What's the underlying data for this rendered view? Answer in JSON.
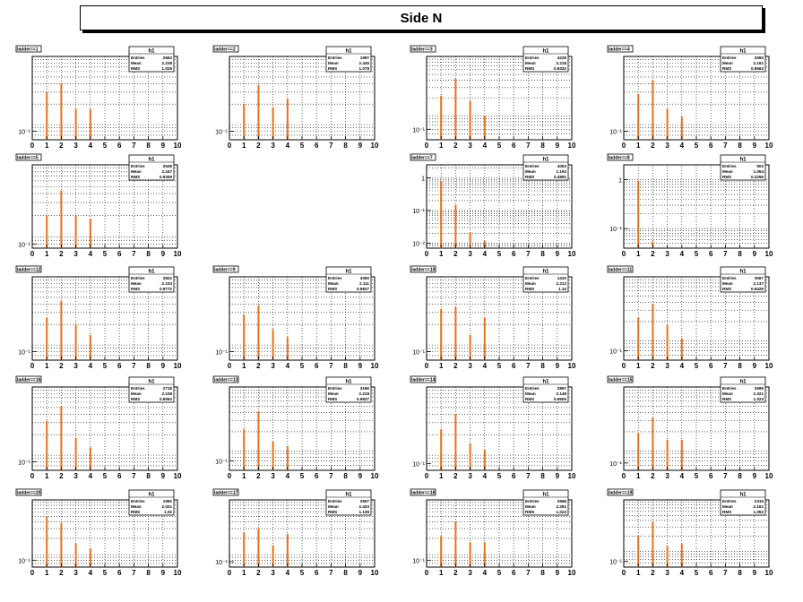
{
  "title": "Side N",
  "chart_data": {
    "type": "bar",
    "y_scale": "log",
    "grid": true,
    "x_ticks": [
      "0",
      "1",
      "2",
      "3",
      "4",
      "5",
      "6",
      "7",
      "8",
      "9",
      "10"
    ],
    "xlim": [
      0,
      10
    ],
    "stats_header": "h1",
    "stat_labels": [
      "Entries",
      "Mean",
      "RMS"
    ],
    "bar_color": "#e8711c",
    "panels": [
      {
        "label": "ladder==1",
        "entries": "2663",
        "mean": "2.238",
        "rms": "1.026",
        "x": [
          1,
          2,
          3,
          4
        ],
        "y": [
          0.3,
          0.4,
          0.17,
          0.17
        ],
        "ylim": [
          0.06,
          1.0
        ],
        "ytick_labels": [
          {
            "v": 0.08,
            "t": "10⁻¹"
          }
        ]
      },
      {
        "label": "ladder==2",
        "entries": "1987",
        "mean": "2.445",
        "rms": "1.078",
        "x": [
          1,
          2,
          3,
          4
        ],
        "y": [
          0.2,
          0.38,
          0.18,
          0.24
        ],
        "ylim": [
          0.06,
          1.0
        ],
        "ytick_labels": [
          {
            "v": 0.08,
            "t": "10⁻¹"
          }
        ]
      },
      {
        "label": "ladder==3",
        "entries": "4228",
        "mean": "2.218",
        "rms": "0.9332",
        "x": [
          1,
          2,
          3,
          4
        ],
        "y": [
          0.22,
          0.42,
          0.18,
          0.1
        ],
        "ylim": [
          0.04,
          1.0
        ],
        "ytick_labels": [
          {
            "v": 0.06,
            "t": "10⁻¹"
          }
        ]
      },
      {
        "label": "ladder==4",
        "entries": "2683",
        "mean": "2.161",
        "rms": "0.9563",
        "x": [
          1,
          2,
          3,
          4
        ],
        "y": [
          0.28,
          0.45,
          0.17,
          0.13
        ],
        "ylim": [
          0.06,
          1.0
        ],
        "ytick_labels": [
          {
            "v": 0.08,
            "t": "10⁻¹"
          }
        ]
      },
      {
        "label": "ladder==5",
        "entries": "2628",
        "mean": "2.247",
        "rms": "0.9309",
        "x": [
          1,
          2,
          3,
          4
        ],
        "y": [
          0.2,
          0.44,
          0.2,
          0.18
        ],
        "ylim": [
          0.07,
          1.0
        ],
        "ytick_labels": [
          {
            "v": 0.08,
            "t": "10⁻¹"
          }
        ]
      },
      {
        "label": "ladder==7",
        "entries": "4063",
        "mean": "1.193",
        "rms": "0.4891",
        "x": [
          1,
          2,
          3,
          4
        ],
        "y": [
          0.8,
          0.15,
          0.022,
          0.012
        ],
        "ylim": [
          0.007,
          2.5
        ],
        "ytick_labels": [
          {
            "v": 1,
            "t": "1"
          },
          {
            "v": 0.1,
            "t": "10⁻¹"
          },
          {
            "v": 0.01,
            "t": "10⁻²"
          }
        ]
      },
      {
        "label": "ladder==8",
        "entries": "502",
        "mean": "1.054",
        "rms": "0.2256",
        "x": [
          1,
          2
        ],
        "y": [
          0.95,
          0.055
        ],
        "ylim": [
          0.04,
          2.0
        ],
        "ytick_labels": [
          {
            "v": 1,
            "t": "1"
          },
          {
            "v": 0.1,
            "t": "10⁻¹"
          }
        ]
      },
      {
        "label": "ladder==9",
        "entries": "3060",
        "mean": "2.111",
        "rms": "0.9827",
        "x": [
          1,
          2,
          3,
          4
        ],
        "y": [
          0.28,
          0.38,
          0.17,
          0.13
        ],
        "ylim": [
          0.06,
          1.0
        ],
        "ytick_labels": [
          {
            "v": 0.08,
            "t": "10⁻¹"
          }
        ]
      },
      {
        "label": "ladder==10",
        "entries": "1410",
        "mean": "2.212",
        "rms": "1.14",
        "x": [
          1,
          2,
          3,
          4
        ],
        "y": [
          0.34,
          0.36,
          0.14,
          0.25
        ],
        "ylim": [
          0.06,
          1.0
        ],
        "ytick_labels": [
          {
            "v": 0.08,
            "t": "10⁻¹"
          }
        ]
      },
      {
        "label": "ladder==11",
        "entries": "3067",
        "mean": "2.137",
        "rms": "0.9429",
        "x": [
          1,
          2,
          3,
          4
        ],
        "y": [
          0.23,
          0.38,
          0.18,
          0.11
        ],
        "ylim": [
          0.05,
          1.0
        ],
        "ytick_labels": [
          {
            "v": 0.07,
            "t": "10⁻¹"
          }
        ]
      },
      {
        "label": "ladder==12",
        "entries": "2822",
        "mean": "2.233",
        "rms": "0.9772",
        "x": [
          1,
          2,
          3,
          4
        ],
        "y": [
          0.25,
          0.45,
          0.2,
          0.14
        ],
        "ylim": [
          0.06,
          1.0
        ],
        "ytick_labels": [
          {
            "v": 0.08,
            "t": "10⁻¹"
          }
        ]
      },
      {
        "label": "ladder==13",
        "entries": "3166",
        "mean": "2.218",
        "rms": "0.9827",
        "x": [
          1,
          2,
          3,
          4
        ],
        "y": [
          0.22,
          0.42,
          0.14,
          0.12
        ],
        "ylim": [
          0.05,
          1.0
        ],
        "ytick_labels": [
          {
            "v": 0.07,
            "t": "10⁻¹"
          }
        ]
      },
      {
        "label": "ladder==14",
        "entries": "2897",
        "mean": "2.148",
        "rms": "0.9605",
        "x": [
          1,
          2,
          3,
          4
        ],
        "y": [
          0.24,
          0.4,
          0.15,
          0.12
        ],
        "ylim": [
          0.06,
          1.0
        ],
        "ytick_labels": [
          {
            "v": 0.075,
            "t": "10⁻¹"
          }
        ]
      },
      {
        "label": "ladder==15",
        "entries": "2699",
        "mean": "2.321",
        "rms": "1.023",
        "x": [
          1,
          2,
          3,
          4
        ],
        "y": [
          0.19,
          0.33,
          0.15,
          0.15
        ],
        "ylim": [
          0.05,
          1.0
        ],
        "ytick_labels": [
          {
            "v": 0.065,
            "t": "10⁻¹"
          }
        ]
      },
      {
        "label": "ladder==16",
        "entries": "2718",
        "mean": "2.108",
        "rms": "0.9063",
        "x": [
          1,
          2,
          3,
          4
        ],
        "y": [
          0.32,
          0.52,
          0.18,
          0.13
        ],
        "ylim": [
          0.06,
          1.0
        ],
        "ytick_labels": [
          {
            "v": 0.08,
            "t": "10⁻¹"
          }
        ]
      },
      {
        "label": "ladder==17",
        "entries": "2907",
        "mean": "2.433",
        "rms": "1.139",
        "x": [
          1,
          2,
          3,
          4
        ],
        "y": [
          0.25,
          0.3,
          0.15,
          0.24
        ],
        "ylim": [
          0.06,
          1.0
        ],
        "ytick_labels": [
          {
            "v": 0.075,
            "t": "10⁻¹"
          }
        ]
      },
      {
        "label": "ladder==18",
        "entries": "2668",
        "mean": "2.281",
        "rms": "1.023",
        "x": [
          1,
          2,
          3,
          4
        ],
        "y": [
          0.22,
          0.4,
          0.17,
          0.17
        ],
        "ylim": [
          0.06,
          1.0
        ],
        "ytick_labels": [
          {
            "v": 0.08,
            "t": "10⁻¹"
          }
        ]
      },
      {
        "label": "ladder==19",
        "entries": "2315",
        "mean": "2.161",
        "rms": "1.052",
        "x": [
          1,
          2,
          3,
          4
        ],
        "y": [
          0.2,
          0.38,
          0.13,
          0.14
        ],
        "ylim": [
          0.05,
          1.0
        ],
        "ytick_labels": [
          {
            "v": 0.065,
            "t": "10⁻¹"
          }
        ]
      },
      {
        "label": "ladder==20",
        "entries": "1992",
        "mean": "2.021",
        "rms": "1.02",
        "x": [
          1,
          2,
          3,
          4
        ],
        "y": [
          0.5,
          0.38,
          0.16,
          0.13
        ],
        "ylim": [
          0.06,
          1.0
        ],
        "ytick_labels": [
          {
            "v": 0.08,
            "t": "10⁻¹"
          }
        ]
      }
    ]
  }
}
